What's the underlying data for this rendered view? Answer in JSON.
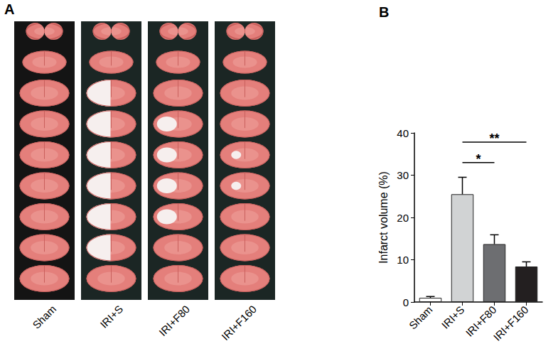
{
  "chart_data": {
    "type": "bar",
    "title": "B",
    "y_label": "Infarct volume (%)",
    "categories": [
      "Sham",
      "IRI+S",
      "IRI+F80",
      "IRI+F160"
    ],
    "values": [
      1.0,
      25.5,
      13.7,
      8.4
    ],
    "errors": [
      0.3,
      4.0,
      2.2,
      1.1
    ],
    "colors": [
      "#ffffff",
      "#d1d3d4",
      "#6d6e71",
      "#231f20"
    ],
    "ylim": [
      0,
      40
    ],
    "yticks": [
      0,
      10,
      20,
      30,
      40
    ],
    "grid": false,
    "annotations": [
      {
        "text": "*",
        "from": "IRI+S",
        "to": "IRI+F80",
        "y": 33
      },
      {
        "text": "**",
        "from": "IRI+S",
        "to": "IRI+F160",
        "y": 37.8
      }
    ]
  },
  "panel_a": {
    "label": "A",
    "groups": [
      "Sham",
      "IRI+S",
      "IRI+F80",
      "IRI+F160"
    ]
  }
}
